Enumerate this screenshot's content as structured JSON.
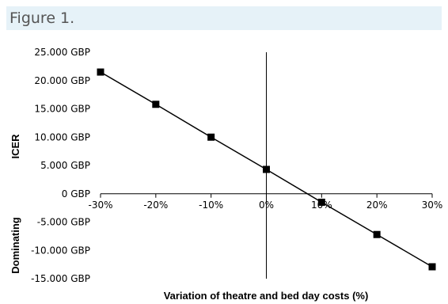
{
  "figure_label": "Figure 1.",
  "chart_data": {
    "type": "line",
    "title": "",
    "xlabel": "Variation of theatre and bed day costs (%)",
    "ylabel_top": "ICER",
    "ylabel_bottom": "Dominating",
    "x": [
      -30,
      -20,
      -10,
      0,
      10,
      20,
      30
    ],
    "x_tick_labels": [
      "-30%",
      "-20%",
      "-10%",
      "0%",
      "10%",
      "20%",
      "30%"
    ],
    "series": [
      {
        "values": [
          21500,
          15800,
          10000,
          4300,
          -1500,
          -7200,
          -12900
        ]
      }
    ],
    "y_ticks": [
      25000,
      20000,
      15000,
      10000,
      5000,
      0,
      -5000,
      -10000,
      -15000
    ],
    "y_tick_labels": [
      "25.000 GBP",
      "20.000 GBP",
      "15.000 GBP",
      "10.000 GBP",
      "5.000 GBP",
      "0 GBP",
      "-5.000 GBP",
      "-10.000 GBP",
      "-15.000 GBP"
    ],
    "xlim": [
      -30,
      30
    ],
    "ylim": [
      -15000,
      25000
    ],
    "marker": "square",
    "grid": false,
    "colors": {
      "line": "#000000",
      "marker": "#000000"
    }
  }
}
